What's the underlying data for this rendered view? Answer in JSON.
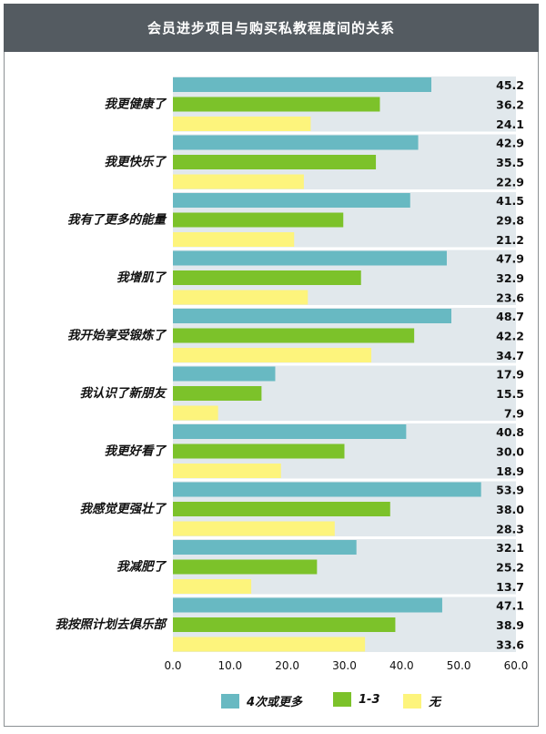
{
  "title": "会员进步项目与购买私教程度间的关系",
  "colors": {
    "series_4plus": "#68b9c2",
    "series_1to3": "#7cc22a",
    "series_none": "#fdf47c",
    "band": "#e1e8ec"
  },
  "chart_data": {
    "type": "bar",
    "orientation": "horizontal",
    "title": "会员进步项目与购买私教程度间的关系",
    "categories": [
      "我更健康了",
      "我更快乐了",
      "我有了更多的能量",
      "我增肌了",
      "我开始享受锻炼了",
      "我认识了新朋友",
      "我更好看了",
      "我感觉更强壮了",
      "我减肥了",
      "我按照计划去俱乐部"
    ],
    "series": [
      {
        "name": "4次或更多",
        "values": [
          45.2,
          42.9,
          41.5,
          47.9,
          48.7,
          17.9,
          40.8,
          53.9,
          32.1,
          47.1
        ],
        "labels": [
          "45.2",
          "42.9",
          "41.5",
          "47.9",
          "48.7",
          "17.9",
          "40.8",
          "53.9",
          "32.1",
          "47.1"
        ]
      },
      {
        "name": "1-3",
        "values": [
          36.2,
          35.5,
          29.8,
          32.9,
          42.2,
          15.5,
          30.0,
          38.0,
          25.2,
          38.9
        ],
        "labels": [
          "36.2",
          "35.5",
          "29.8",
          "32.9",
          "42.2",
          "15.5",
          "30.0",
          "38.0",
          "25.2",
          "38.9"
        ]
      },
      {
        "name": "无",
        "values": [
          24.1,
          22.9,
          21.2,
          23.6,
          34.7,
          7.9,
          18.9,
          28.3,
          13.7,
          33.6
        ],
        "labels": [
          "24.1",
          "22.9",
          "21.2",
          "23.6",
          "34.7",
          "7.9",
          "18.9",
          "28.3",
          "13.7",
          "33.6"
        ]
      }
    ],
    "xlim": [
      0,
      60
    ],
    "xticks": [
      "0.0",
      "10.0",
      "20.0",
      "30.0",
      "40.0",
      "50.0",
      "60.0"
    ],
    "legend_position": "bottom",
    "grid": false
  }
}
